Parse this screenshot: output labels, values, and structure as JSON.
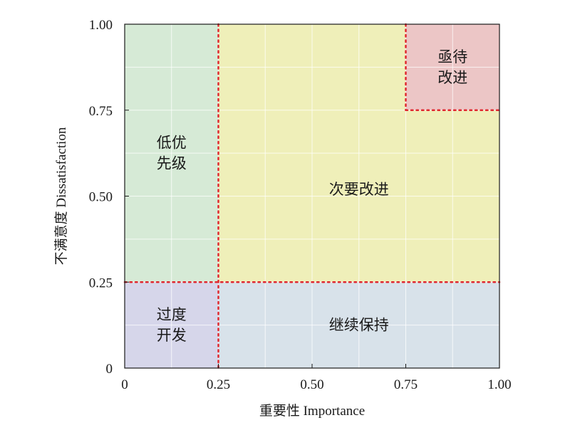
{
  "chart_data": {
    "type": "quadrant",
    "xlabel": "重要性 Importance",
    "ylabel": "不满意度 Dissatisfaction",
    "xlim": [
      0,
      1
    ],
    "ylim": [
      0,
      1
    ],
    "x_ticks": [
      0,
      0.25,
      0.5,
      0.75,
      1.0
    ],
    "x_tick_labels": [
      "0",
      "0.25",
      "0.50",
      "0.75",
      "1.00"
    ],
    "y_ticks": [
      0,
      0.25,
      0.5,
      0.75,
      1.0
    ],
    "y_tick_labels": [
      "0",
      "0.25",
      "0.50",
      "0.75",
      "1.00"
    ],
    "grid": true,
    "thresholds": {
      "x_main": 0.25,
      "y_main": 0.25,
      "x_corner": 0.75,
      "y_corner": 0.75
    },
    "regions": [
      {
        "id": "low-priority",
        "label_lines": [
          "低优",
          "先级"
        ],
        "x": [
          0,
          0.25
        ],
        "y": [
          0.25,
          1.0
        ],
        "color": "#d6ead6",
        "label_at": [
          0.125,
          0.625
        ]
      },
      {
        "id": "minor-improvement",
        "label_lines": [
          "次要改进"
        ],
        "x": [
          0.25,
          1.0
        ],
        "y": [
          0.25,
          1.0
        ],
        "color": "#efefb9",
        "label_at": [
          0.625,
          0.52
        ]
      },
      {
        "id": "urgent-improvement",
        "label_lines": [
          "亟待",
          "改进"
        ],
        "x": [
          0.75,
          1.0
        ],
        "y": [
          0.75,
          1.0
        ],
        "color": "#ecc6c6",
        "label_at": [
          0.875,
          0.875
        ]
      },
      {
        "id": "over-development",
        "label_lines": [
          "过度",
          "开发"
        ],
        "x": [
          0,
          0.25
        ],
        "y": [
          0,
          0.25
        ],
        "color": "#d6d6ea",
        "label_at": [
          0.125,
          0.125
        ]
      },
      {
        "id": "keep-maintaining",
        "label_lines": [
          "继续保持"
        ],
        "x": [
          0.25,
          1.0
        ],
        "y": [
          0,
          0.25
        ],
        "color": "#d8e2ea",
        "label_at": [
          0.625,
          0.125
        ]
      }
    ],
    "divider_color": "#e0282f"
  }
}
